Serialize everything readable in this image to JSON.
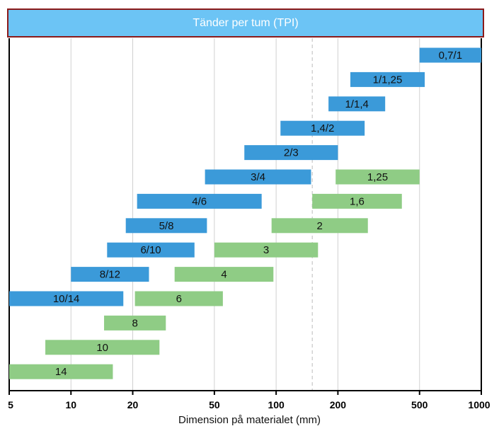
{
  "chart_data": {
    "type": "bar",
    "orientation": "horizontal-range",
    "title": "Tänder per tum (TPI)",
    "xlabel": "Dimension på materialet (mm)",
    "ylabel": "",
    "x_scale": "log",
    "xlim": [
      5,
      1000
    ],
    "x_ticks": [
      {
        "value": 5,
        "label": "5"
      },
      {
        "value": 10,
        "label": "10"
      },
      {
        "value": 20,
        "label": "20"
      },
      {
        "value": 50,
        "label": "50"
      },
      {
        "value": 100,
        "label": "100"
      },
      {
        "value": 200,
        "label": "200"
      },
      {
        "value": 500,
        "label": "500"
      },
      {
        "value": 1000,
        "label": "1000"
      }
    ],
    "reference_line_x": 150,
    "grid": true,
    "series": [
      {
        "color": "#3b9ad9",
        "bars": [
          {
            "label": "0,7/1",
            "start": 500,
            "end": 1000,
            "row": 1
          },
          {
            "label": "1/1,25",
            "start": 230,
            "end": 530,
            "row": 2
          },
          {
            "label": "1/1,4",
            "start": 180,
            "end": 340,
            "row": 3
          },
          {
            "label": "1,4/2",
            "start": 105,
            "end": 270,
            "row": 4
          },
          {
            "label": "2/3",
            "start": 70,
            "end": 200,
            "row": 5
          },
          {
            "label": "3/4",
            "start": 45,
            "end": 148,
            "row": 6
          },
          {
            "label": "4/6",
            "start": 21,
            "end": 85,
            "row": 7
          },
          {
            "label": "5/8",
            "start": 18.5,
            "end": 46,
            "row": 8
          },
          {
            "label": "6/10",
            "start": 15,
            "end": 40,
            "row": 9
          },
          {
            "label": "8/12",
            "start": 10,
            "end": 24,
            "row": 10
          },
          {
            "label": "10/14",
            "start": 5,
            "end": 18,
            "row": 11
          }
        ]
      },
      {
        "color": "#8fcc85",
        "bars": [
          {
            "label": "1,25",
            "start": 195,
            "end": 500,
            "row": 6
          },
          {
            "label": "1,6",
            "start": 150,
            "end": 410,
            "row": 7
          },
          {
            "label": "2",
            "start": 95,
            "end": 280,
            "row": 8
          },
          {
            "label": "3",
            "start": 50,
            "end": 160,
            "row": 9
          },
          {
            "label": "4",
            "start": 32,
            "end": 97,
            "row": 10
          },
          {
            "label": "6",
            "start": 20.5,
            "end": 55,
            "row": 11
          },
          {
            "label": "8",
            "start": 14.5,
            "end": 29,
            "row": 12
          },
          {
            "label": "10",
            "start": 7.5,
            "end": 27,
            "row": 13
          },
          {
            "label": "14",
            "start": 5,
            "end": 16,
            "row": 14
          }
        ]
      }
    ]
  },
  "colors": {
    "header_fill": "#6cc4f5",
    "header_border": "#8b1a1a",
    "grid": "#d0d0d0",
    "axis": "#000000"
  }
}
